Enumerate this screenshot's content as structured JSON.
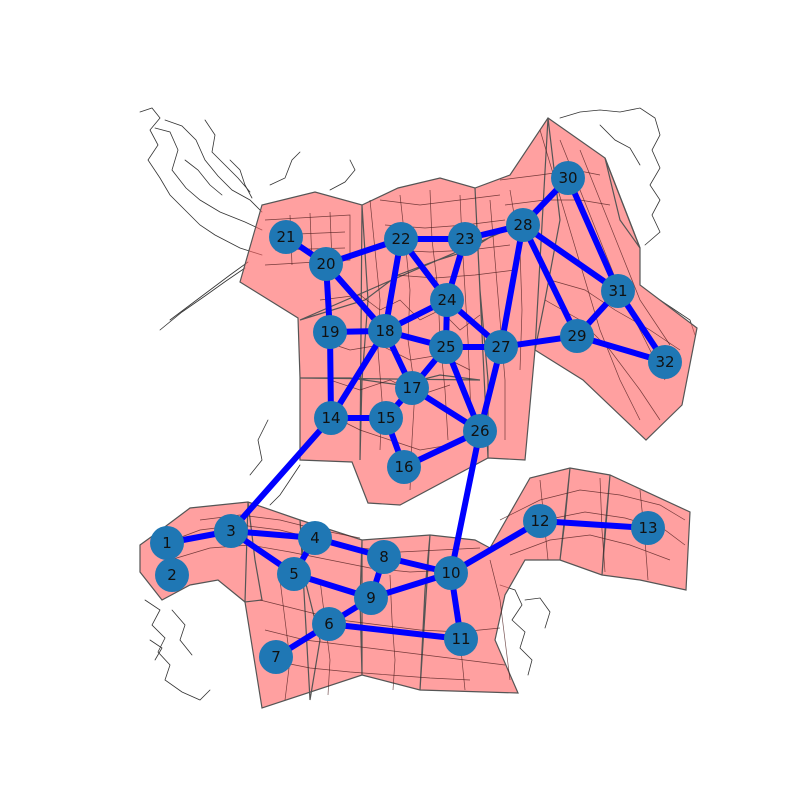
{
  "colors": {
    "background": "#ffffff",
    "region_fill": "#ff6666",
    "region_stroke": "#555555",
    "road": "#2a2a2a",
    "edge": "#0000ff",
    "node": "#1f77b4",
    "label": "#111111"
  },
  "nodes": [
    {
      "id": "1",
      "label": "1"
    },
    {
      "id": "2",
      "label": "2"
    },
    {
      "id": "3",
      "label": "3"
    },
    {
      "id": "4",
      "label": "4"
    },
    {
      "id": "5",
      "label": "5"
    },
    {
      "id": "6",
      "label": "6"
    },
    {
      "id": "7",
      "label": "7"
    },
    {
      "id": "8",
      "label": "8"
    },
    {
      "id": "9",
      "label": "9"
    },
    {
      "id": "10",
      "label": "10"
    },
    {
      "id": "11",
      "label": "11"
    },
    {
      "id": "12",
      "label": "12"
    },
    {
      "id": "13",
      "label": "13"
    },
    {
      "id": "14",
      "label": "14"
    },
    {
      "id": "15",
      "label": "15"
    },
    {
      "id": "16",
      "label": "16"
    },
    {
      "id": "17",
      "label": "17"
    },
    {
      "id": "18",
      "label": "18"
    },
    {
      "id": "19",
      "label": "19"
    },
    {
      "id": "20",
      "label": "20"
    },
    {
      "id": "21",
      "label": "21"
    },
    {
      "id": "22",
      "label": "22"
    },
    {
      "id": "23",
      "label": "23"
    },
    {
      "id": "24",
      "label": "24"
    },
    {
      "id": "25",
      "label": "25"
    },
    {
      "id": "26",
      "label": "26"
    },
    {
      "id": "27",
      "label": "27"
    },
    {
      "id": "28",
      "label": "28"
    },
    {
      "id": "29",
      "label": "29"
    },
    {
      "id": "30",
      "label": "30"
    },
    {
      "id": "31",
      "label": "31"
    },
    {
      "id": "32",
      "label": "32"
    }
  ],
  "edges": [
    [
      "1",
      "3"
    ],
    [
      "3",
      "4"
    ],
    [
      "3",
      "5"
    ],
    [
      "3",
      "14"
    ],
    [
      "4",
      "5"
    ],
    [
      "4",
      "8"
    ],
    [
      "5",
      "9"
    ],
    [
      "8",
      "9"
    ],
    [
      "8",
      "10"
    ],
    [
      "9",
      "6"
    ],
    [
      "9",
      "10"
    ],
    [
      "6",
      "7"
    ],
    [
      "6",
      "11"
    ],
    [
      "10",
      "11"
    ],
    [
      "10",
      "12"
    ],
    [
      "10",
      "26"
    ],
    [
      "12",
      "13"
    ],
    [
      "14",
      "15"
    ],
    [
      "14",
      "19"
    ],
    [
      "14",
      "18"
    ],
    [
      "15",
      "16"
    ],
    [
      "15",
      "17"
    ],
    [
      "16",
      "26"
    ],
    [
      "17",
      "18"
    ],
    [
      "17",
      "25"
    ],
    [
      "17",
      "26"
    ],
    [
      "18",
      "19"
    ],
    [
      "18",
      "20"
    ],
    [
      "18",
      "22"
    ],
    [
      "18",
      "24"
    ],
    [
      "18",
      "25"
    ],
    [
      "19",
      "20"
    ],
    [
      "20",
      "21"
    ],
    [
      "20",
      "22"
    ],
    [
      "22",
      "23"
    ],
    [
      "22",
      "24"
    ],
    [
      "23",
      "24"
    ],
    [
      "23",
      "28"
    ],
    [
      "24",
      "25"
    ],
    [
      "24",
      "27"
    ],
    [
      "25",
      "26"
    ],
    [
      "25",
      "27"
    ],
    [
      "26",
      "27"
    ],
    [
      "27",
      "28"
    ],
    [
      "27",
      "29"
    ],
    [
      "28",
      "29"
    ],
    [
      "28",
      "30"
    ],
    [
      "28",
      "31"
    ],
    [
      "29",
      "31"
    ],
    [
      "29",
      "32"
    ],
    [
      "30",
      "31"
    ],
    [
      "31",
      "32"
    ]
  ]
}
